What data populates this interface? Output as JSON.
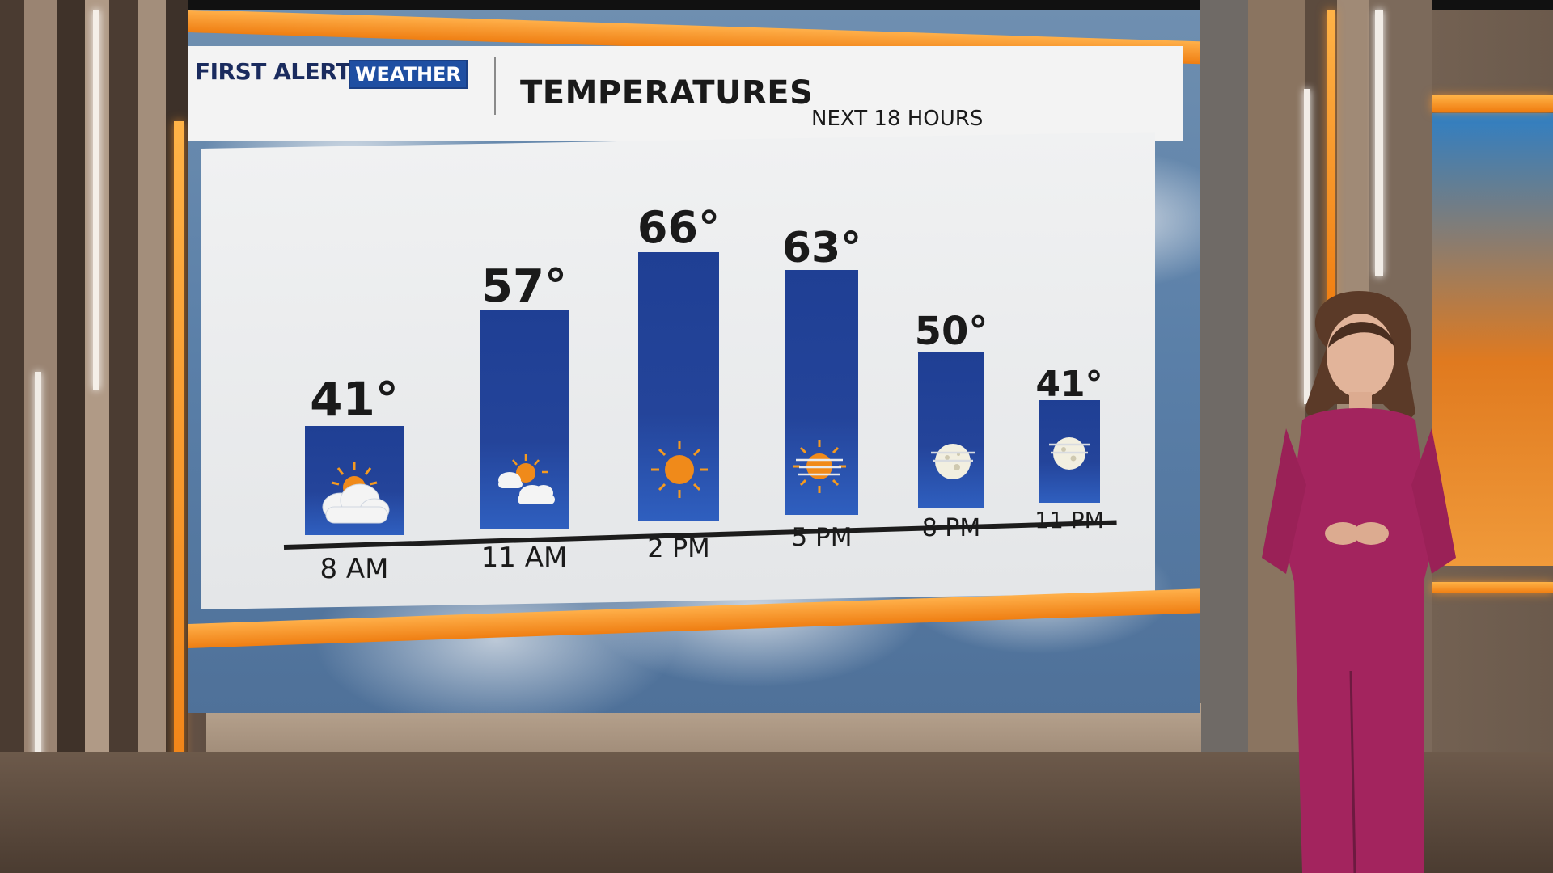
{
  "header": {
    "logo_first_alert": "FIRST ALERT",
    "logo_weather": "WEATHER",
    "title": "TEMPERATURES",
    "subtitle": "NEXT 18 HOURS"
  },
  "forecast": [
    {
      "time": "8 AM",
      "temp": "41°",
      "condition": "partly-sunny-icon"
    },
    {
      "time": "11 AM",
      "temp": "57°",
      "condition": "partly-cloudy-icon"
    },
    {
      "time": "2 PM",
      "temp": "66°",
      "condition": "sunny-icon"
    },
    {
      "time": "5 PM",
      "temp": "63°",
      "condition": "hazy-sun-icon"
    },
    {
      "time": "8 PM",
      "temp": "50°",
      "condition": "hazy-moon-icon"
    },
    {
      "time": "11 PM",
      "temp": "41°",
      "condition": "hazy-moon-icon"
    }
  ],
  "colors": {
    "bar": "#24449a",
    "accent_orange": "#ef7e12",
    "logo_blue": "#1f4fa2",
    "presenter_dress": "#a3245e"
  }
}
